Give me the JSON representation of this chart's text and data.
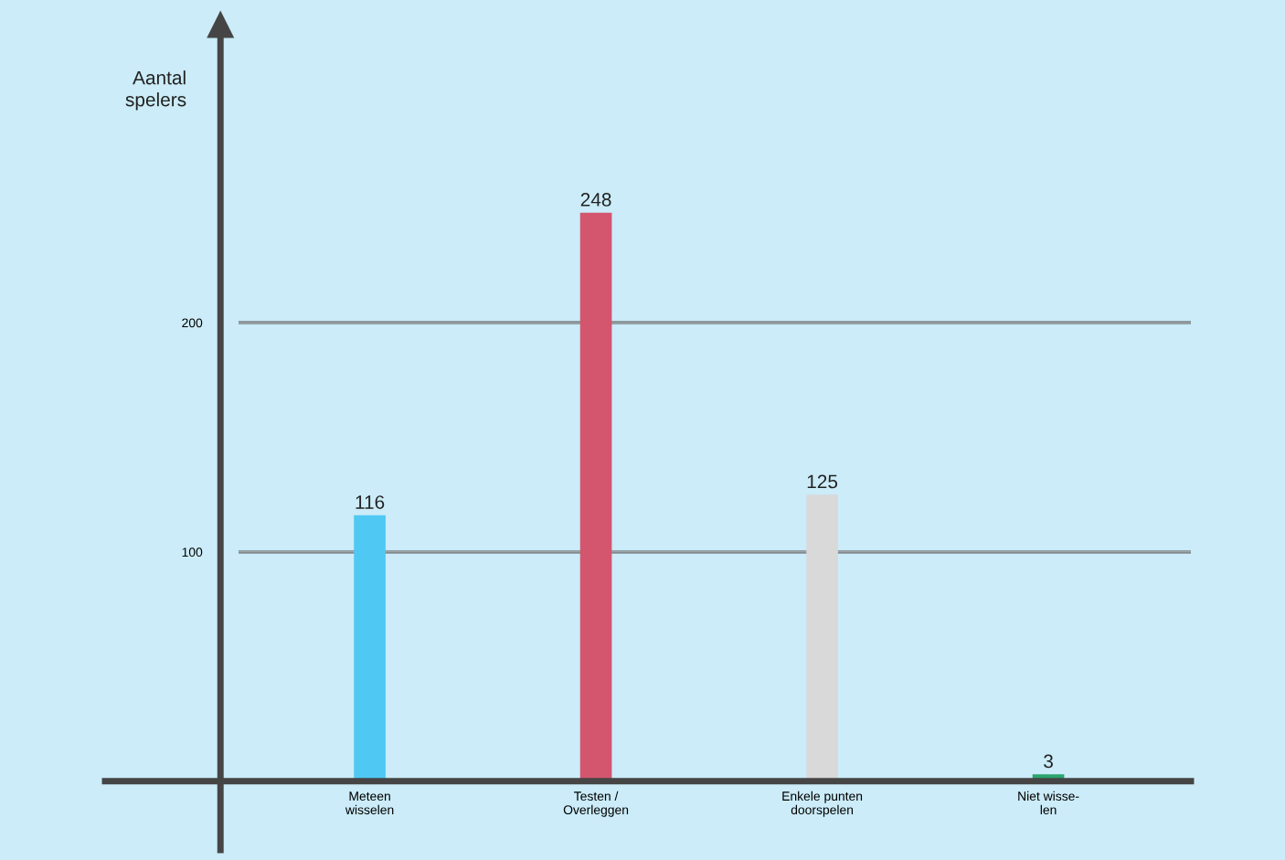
{
  "chart_data": {
    "type": "bar",
    "ylabel": "Aantal\nspelers",
    "categories": [
      "Meteen\nwisselen",
      "Testen /\nOverleggen",
      "Enkele punten\ndoorspelen",
      "Niet wisse-\nlen"
    ],
    "values": [
      116,
      248,
      125,
      3
    ],
    "colors": [
      "#4fc9f4",
      "#d3566e",
      "#d9d9d9",
      "#2aa56e"
    ],
    "ylim": [
      -30,
      330
    ],
    "yticks": [
      100,
      200
    ],
    "grid": "y",
    "data_labels": true
  }
}
